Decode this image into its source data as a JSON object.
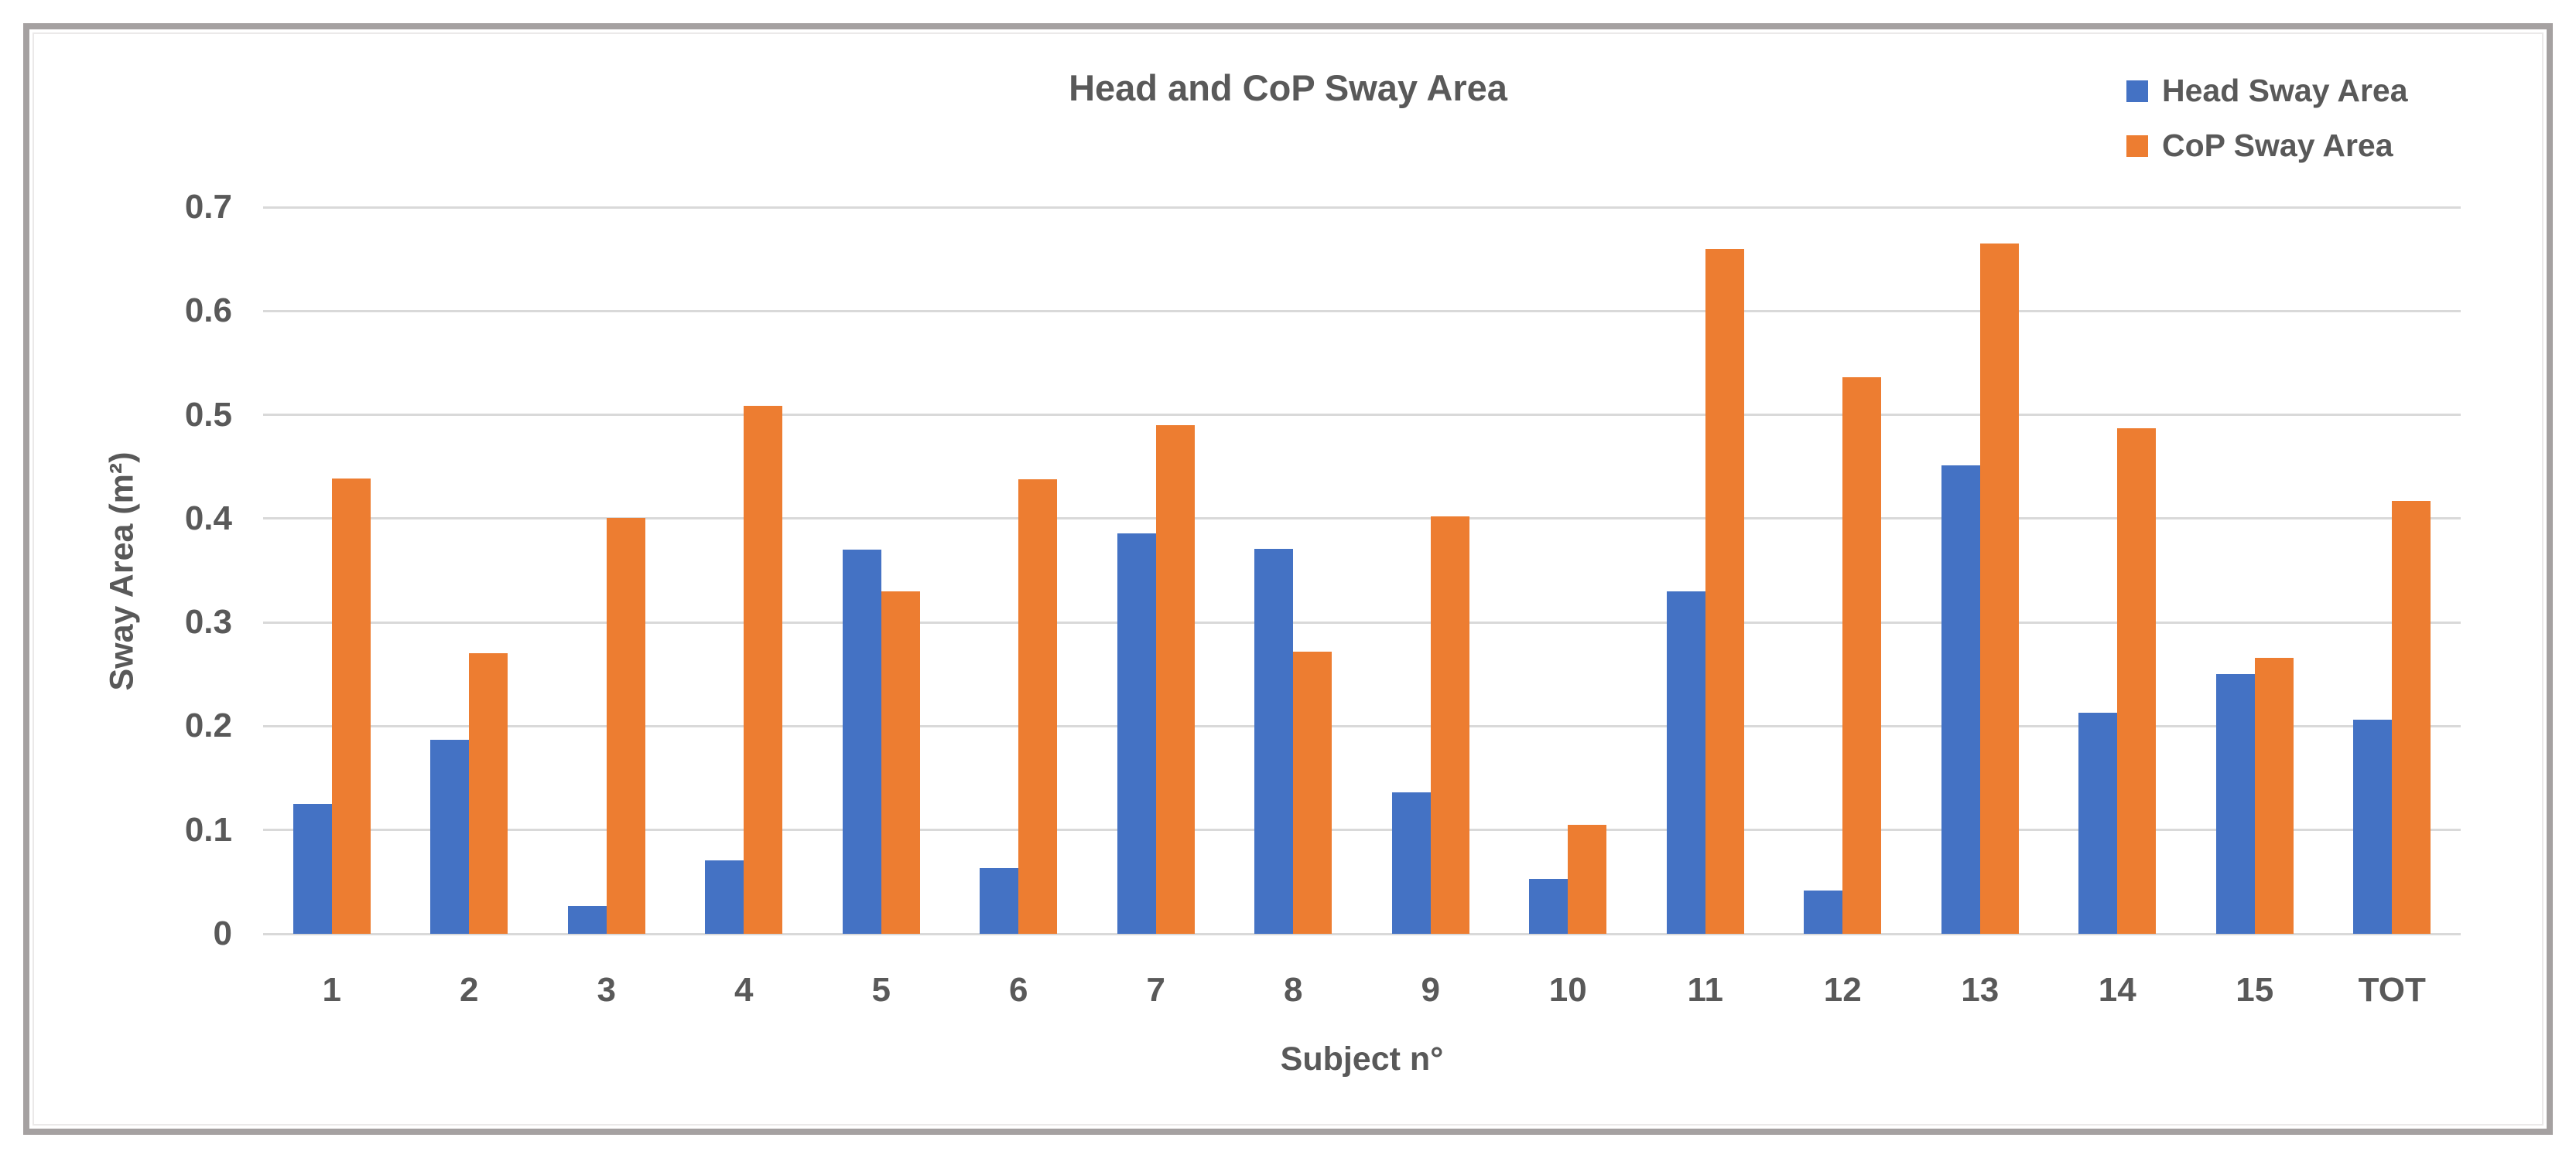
{
  "chart_data": {
    "type": "bar",
    "title": "Head and CoP Sway Area",
    "xlabel": "Subject n°",
    "ylabel": "Sway Area (m²)",
    "categories": [
      "1",
      "2",
      "3",
      "4",
      "5",
      "6",
      "7",
      "8",
      "9",
      "10",
      "11",
      "12",
      "13",
      "14",
      "15",
      "TOT"
    ],
    "series": [
      {
        "name": "Head Sway Area",
        "color": "#4472C4",
        "values": [
          0.125,
          0.187,
          0.027,
          0.071,
          0.37,
          0.063,
          0.386,
          0.371,
          0.136,
          0.053,
          0.33,
          0.042,
          0.451,
          0.213,
          0.25,
          0.206
        ]
      },
      {
        "name": "CoP Sway Area",
        "color": "#ED7D31",
        "values": [
          0.439,
          0.27,
          0.401,
          0.509,
          0.33,
          0.438,
          0.49,
          0.272,
          0.402,
          0.105,
          0.66,
          0.536,
          0.665,
          0.487,
          0.266,
          0.417
        ]
      }
    ],
    "ylim": [
      0,
      0.7
    ],
    "yticks": [
      "0",
      "0.1",
      "0.2",
      "0.3",
      "0.4",
      "0.5",
      "0.6",
      "0.7"
    ],
    "grid": "horizontal",
    "legend_position": "top-right"
  },
  "colors": {
    "head_series": "#4472C4",
    "cop_series": "#ED7D31",
    "gridline": "#D9D9D9",
    "text": "#595959",
    "frame_border": "#A5A1A1",
    "background": "#FFFFFF"
  }
}
